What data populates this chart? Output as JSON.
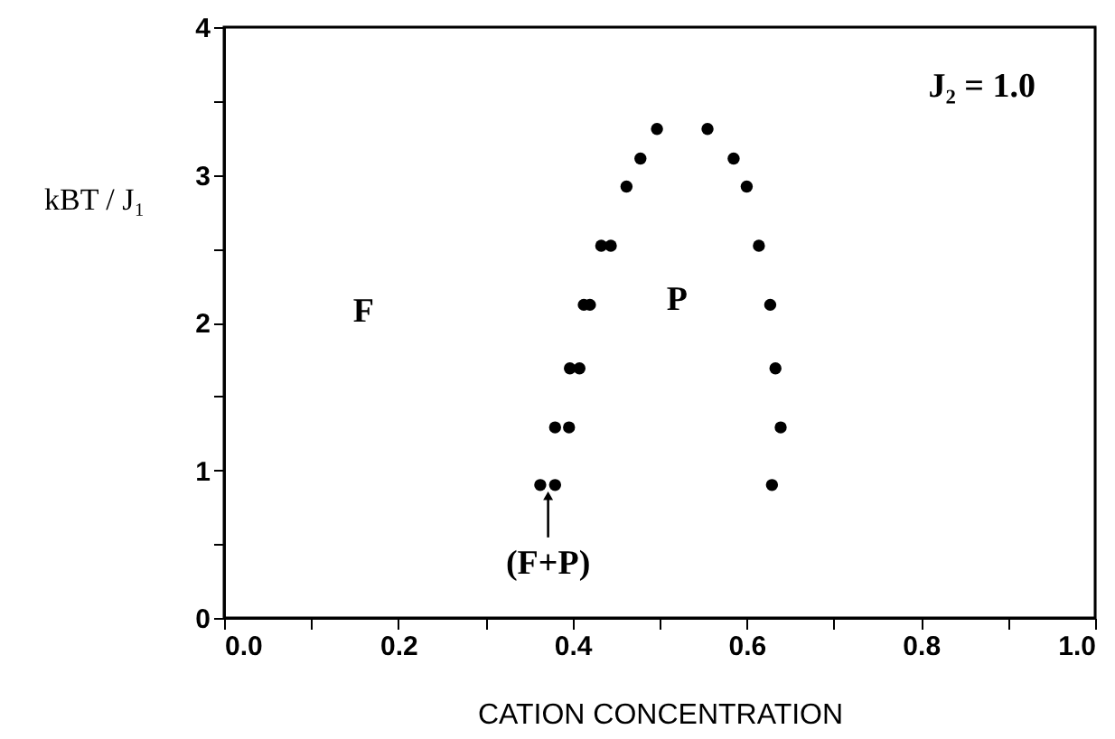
{
  "chart_data": {
    "type": "scatter",
    "xlabel": "CATION  CONCENTRATION",
    "ylabel": "kBT / J₁",
    "x": [
      0.363,
      0.38,
      0.38,
      0.396,
      0.397,
      0.408,
      0.413,
      0.42,
      0.433,
      0.444,
      0.462,
      0.478,
      0.497,
      0.555,
      0.585,
      0.6,
      0.614,
      0.627,
      0.633,
      0.639,
      0.629
    ],
    "series": [
      {
        "color": "#000000",
        "values": [
          0.9,
          0.9,
          1.29,
          1.29,
          1.69,
          1.69,
          2.12,
          2.12,
          2.52,
          2.52,
          2.92,
          3.11,
          3.31,
          3.31,
          3.11,
          2.92,
          2.52,
          2.12,
          1.69,
          1.29,
          0.9
        ]
      }
    ],
    "marker": "circle",
    "xlim": [
      0,
      1
    ],
    "ylim": [
      0,
      4
    ],
    "xticks": [
      {
        "value": 0,
        "label": "0.0"
      },
      {
        "value": 0.1,
        "label": null
      },
      0.2,
      {
        "value": 0.3,
        "label": null
      },
      0.4,
      {
        "value": 0.5,
        "label": null
      },
      0.6,
      {
        "value": 0.7,
        "label": null
      },
      0.8,
      {
        "value": 0.9,
        "label": null
      },
      {
        "value": 1,
        "label": "1.0"
      }
    ],
    "yticks": [
      0,
      {
        "value": 0.5,
        "label": null
      },
      1,
      {
        "value": 1.5,
        "label": null
      },
      2,
      {
        "value": 2.5,
        "label": null
      },
      3,
      {
        "value": 3.5,
        "label": null
      },
      4
    ],
    "grid": false,
    "annotations": [
      "J₂ = 1.0",
      "F",
      "P",
      {
        "text": "(F+P)",
        "x": 0.372,
        "y": 0.9
      }
    ]
  }
}
